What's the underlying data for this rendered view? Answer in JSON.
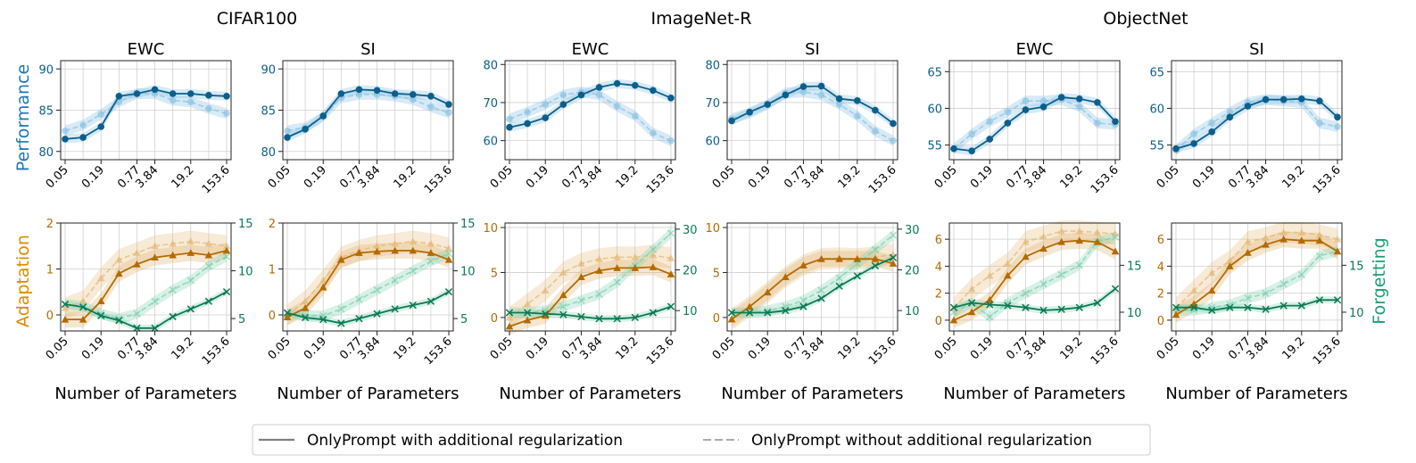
{
  "figure": {
    "dataset_titles": [
      "CIFAR100",
      "ImageNet-R",
      "ObjectNet"
    ],
    "row_labels": {
      "performance": "Performance",
      "adaptation": "Adaptation",
      "forgetting": "Forgetting"
    },
    "xlabel": "Number of Parameters"
  },
  "colors": {
    "performance": "#0b5f8c",
    "performance_light": "#8cc2e3",
    "adaptation": "#b36b00",
    "adaptation_light": "#e3b877",
    "forgetting": "#0a7a52",
    "forgetting_light": "#7fd0ae",
    "performance_label": "#1f77b4",
    "adaptation_label": "#d98c00",
    "forgetting_label": "#1b9e77"
  },
  "legend": {
    "solid": "OnlyPrompt with additional regularization",
    "dashed": "OnlyPrompt without additional regularization"
  },
  "chart_data": [
    {
      "type": "line",
      "dataset": "CIFAR100",
      "title": "EWC",
      "x_ticks": [
        "0.05",
        "0.19",
        "0.77",
        "3.84",
        "19.2",
        "153.6"
      ],
      "perf": {
        "ylim": [
          79,
          91
        ],
        "yticks": [
          80,
          85,
          90
        ],
        "series": [
          {
            "name": "with",
            "values": [
              81.5,
              81.7,
              83,
              86.7,
              87,
              87.5,
              87,
              87,
              86.8,
              86.7
            ]
          },
          {
            "name": "without",
            "values": [
              82.5,
              83.2,
              84.5,
              86,
              87,
              87,
              86.2,
              86,
              85.2,
              84.6
            ]
          }
        ]
      },
      "adapt": {
        "ylim": [
          -0.35,
          2
        ],
        "yticks": [
          0,
          1,
          2
        ],
        "series": [
          {
            "name": "with",
            "values": [
              -0.1,
              -0.1,
              0.3,
              0.9,
              1.1,
              1.25,
              1.3,
              1.35,
              1.3,
              1.4
            ]
          },
          {
            "name": "without",
            "values": [
              0.15,
              0.3,
              0.8,
              1.2,
              1.35,
              1.5,
              1.55,
              1.6,
              1.55,
              1.5
            ]
          }
        ]
      },
      "forget": {
        "ylim": [
          3.7,
          15
        ],
        "yticks": [
          5,
          10,
          15
        ],
        "series": [
          {
            "name": "with",
            "values": [
              6.5,
              6.2,
              5.3,
              4.8,
              4,
              4,
              5.2,
              6,
              6.8,
              7.8
            ]
          },
          {
            "name": "without",
            "values": [
              6.5,
              6.3,
              5.5,
              5,
              5.5,
              6.8,
              8,
              9,
              10.5,
              11.5
            ]
          }
        ]
      }
    },
    {
      "type": "line",
      "dataset": "CIFAR100",
      "title": "SI",
      "x_ticks": [
        "0.05",
        "0.19",
        "0.77",
        "3.84",
        "19.2",
        "153.6"
      ],
      "perf": {
        "ylim": [
          79,
          91
        ],
        "yticks": [
          80,
          85,
          90
        ],
        "series": [
          {
            "name": "with",
            "values": [
              81.7,
              82.7,
              84.3,
              87,
              87.5,
              87.4,
              87,
              86.9,
              86.7,
              85.7
            ]
          },
          {
            "name": "without",
            "values": [
              82.5,
              82.9,
              84.2,
              86.5,
              86.9,
              86.9,
              86.7,
              86.3,
              85.4,
              84.7
            ]
          }
        ]
      },
      "adapt": {
        "ylim": [
          -0.35,
          2
        ],
        "yticks": [
          0,
          1,
          2
        ],
        "series": [
          {
            "name": "with",
            "values": [
              -0.05,
              0.15,
              0.6,
              1.2,
              1.35,
              1.38,
              1.4,
              1.4,
              1.35,
              1.2
            ]
          },
          {
            "name": "without",
            "values": [
              0.0,
              0.3,
              0.75,
              1.25,
              1.4,
              1.5,
              1.55,
              1.6,
              1.55,
              1.45
            ]
          }
        ]
      },
      "forget": {
        "ylim": [
          3.7,
          15
        ],
        "yticks": [
          5,
          10,
          15
        ],
        "series": [
          {
            "name": "with",
            "values": [
              5.6,
              5.1,
              4.9,
              4.5,
              5,
              5.5,
              6,
              6.4,
              6.8,
              7.8
            ]
          },
          {
            "name": "without",
            "values": [
              5.5,
              5.3,
              5.3,
              6,
              7,
              8,
              9,
              10,
              11,
              11.8
            ]
          }
        ]
      }
    },
    {
      "type": "line",
      "dataset": "ImageNet-R",
      "title": "EWC",
      "x_ticks": [
        "0.05",
        "0.19",
        "0.77",
        "3.84",
        "19.2",
        "153.6"
      ],
      "perf": {
        "ylim": [
          55,
          81
        ],
        "yticks": [
          60,
          70,
          80
        ],
        "series": [
          {
            "name": "with",
            "values": [
              63.5,
              64.5,
              66,
              69.5,
              72,
              74,
              75,
              74.5,
              73.2,
              71.2
            ]
          },
          {
            "name": "without",
            "values": [
              65.7,
              67.5,
              69.5,
              72,
              72.8,
              72,
              69,
              66.5,
              62,
              60
            ]
          }
        ]
      },
      "adapt": {
        "ylim": [
          -1.5,
          10.5
        ],
        "yticks": [
          0,
          5,
          10
        ],
        "series": [
          {
            "name": "with",
            "values": [
              -1.0,
              -0.3,
              0.2,
              2.5,
              4.5,
              5.2,
              5.5,
              5.5,
              5.6,
              4.8
            ]
          },
          {
            "name": "without",
            "values": [
              0.0,
              1.5,
              3.0,
              5.0,
              6.0,
              6.5,
              6.7,
              6.7,
              6.9,
              6.6
            ]
          }
        ]
      },
      "forget": {
        "ylim": [
          5,
          31.5
        ],
        "yticks": [
          10,
          20,
          30
        ],
        "series": [
          {
            "name": "with",
            "values": [
              9.5,
              9.5,
              9.2,
              9,
              8.5,
              8,
              8,
              8.3,
              9.5,
              11
            ]
          },
          {
            "name": "without",
            "values": [
              9.5,
              9.5,
              10,
              11,
              12.5,
              14,
              17,
              21,
              25,
              29
            ]
          }
        ]
      }
    },
    {
      "type": "line",
      "dataset": "ImageNet-R",
      "title": "SI",
      "x_ticks": [
        "0.05",
        "0.19",
        "0.77",
        "3.84",
        "19.2",
        "153.6"
      ],
      "perf": {
        "ylim": [
          55,
          81
        ],
        "yticks": [
          60,
          70,
          80
        ],
        "series": [
          {
            "name": "with",
            "values": [
              65.2,
              67.5,
              69.5,
              72,
              74.2,
              74.3,
              71,
              70.5,
              68,
              64.5
            ]
          },
          {
            "name": "without",
            "values": [
              65.8,
              67.2,
              69.5,
              72.5,
              72.8,
              72,
              69.5,
              66.5,
              62.5,
              60
            ]
          }
        ]
      },
      "adapt": {
        "ylim": [
          -1.5,
          10.5
        ],
        "yticks": [
          0,
          5,
          10
        ],
        "series": [
          {
            "name": "with",
            "values": [
              -0.2,
              1.2,
              2.8,
              4.5,
              5.8,
              6.5,
              6.5,
              6.5,
              6.5,
              6.0
            ]
          },
          {
            "name": "without",
            "values": [
              -0.2,
              1.2,
              2.8,
              4.5,
              5.8,
              6.5,
              6.6,
              6.5,
              6.7,
              7.0
            ]
          }
        ]
      },
      "forget": {
        "ylim": [
          5,
          31.5
        ],
        "yticks": [
          10,
          20,
          30
        ],
        "series": [
          {
            "name": "with",
            "values": [
              9.5,
              9.5,
              9.5,
              10,
              11,
              13,
              16,
              18.5,
              21,
              23
            ]
          },
          {
            "name": "without",
            "values": [
              9.5,
              9.5,
              10,
              11,
              12.5,
              15,
              18,
              21.5,
              25,
              28.5
            ]
          }
        ]
      }
    },
    {
      "type": "line",
      "dataset": "ObjectNet",
      "title": "EWC",
      "x_ticks": [
        "0.05",
        "0.19",
        "0.77",
        "3.84",
        "19.2",
        "153.6"
      ],
      "perf": {
        "ylim": [
          53,
          66.5
        ],
        "yticks": [
          55,
          60,
          65
        ],
        "series": [
          {
            "name": "with",
            "values": [
              54.5,
              54.2,
              55.8,
              58,
              59.8,
              60.2,
              61.5,
              61.3,
              60.8,
              58.2
            ]
          },
          {
            "name": "without",
            "values": [
              54.5,
              56.5,
              58.2,
              59.5,
              61,
              61,
              61.2,
              60.2,
              58,
              57.8
            ]
          }
        ]
      },
      "adapt": {
        "ylim": [
          -0.8,
          7.2
        ],
        "yticks": [
          0,
          2,
          4,
          6
        ],
        "series": [
          {
            "name": "with",
            "values": [
              0.0,
              0.6,
              1.5,
              3.3,
              4.7,
              5.3,
              5.8,
              5.9,
              5.8,
              5.1
            ]
          },
          {
            "name": "without",
            "values": [
              0.9,
              2.3,
              3.3,
              4.2,
              5.8,
              6.2,
              6.6,
              6.6,
              6.5,
              6.4
            ]
          }
        ]
      },
      "forget": {
        "ylim": [
          8,
          19.5
        ],
        "yticks": [
          10,
          15
        ],
        "series": [
          {
            "name": "with",
            "values": [
              10.5,
              11,
              10.8,
              10.7,
              10.5,
              10.2,
              10.3,
              10.5,
              11,
              12.5
            ]
          },
          {
            "name": "without",
            "values": [
              10,
              11,
              9.5,
              11,
              12,
              13,
              14,
              15,
              17.5,
              18
            ]
          }
        ]
      }
    },
    {
      "type": "line",
      "dataset": "ObjectNet",
      "title": "SI",
      "x_ticks": [
        "0.05",
        "0.19",
        "0.77",
        "3.84",
        "19.2",
        "153.6"
      ],
      "perf": {
        "ylim": [
          53,
          66.5
        ],
        "yticks": [
          55,
          60,
          65
        ],
        "series": [
          {
            "name": "with",
            "values": [
              54.5,
              55.2,
              56.8,
              58.8,
              60.3,
              61.2,
              61.2,
              61.3,
              61,
              58.8
            ]
          },
          {
            "name": "without",
            "values": [
              54.3,
              56.5,
              58,
              59.5,
              60.8,
              61.2,
              61,
              60.8,
              58,
              57.5
            ]
          }
        ]
      },
      "adapt": {
        "ylim": [
          -0.8,
          7.2
        ],
        "yticks": [
          0,
          2,
          4,
          6
        ],
        "series": [
          {
            "name": "with",
            "values": [
              0.4,
              1.2,
              2.2,
              4.0,
              5.0,
              5.6,
              6.0,
              5.9,
              5.9,
              5.1
            ]
          },
          {
            "name": "without",
            "values": [
              0.9,
              2.2,
              3.5,
              4.4,
              5.8,
              6.1,
              6.5,
              6.5,
              6.3,
              6.0
            ]
          }
        ]
      },
      "forget": {
        "ylim": [
          8,
          19.5
        ],
        "yticks": [
          10,
          15
        ],
        "series": [
          {
            "name": "with",
            "values": [
              10.5,
              10.5,
              10.2,
              10.5,
              10.5,
              10.3,
              10.7,
              10.7,
              11.3,
              11.3
            ]
          },
          {
            "name": "without",
            "values": [
              10.2,
              10.2,
              10.5,
              10.8,
              11.5,
              12,
              13,
              14,
              16,
              16.5
            ]
          }
        ]
      }
    }
  ]
}
